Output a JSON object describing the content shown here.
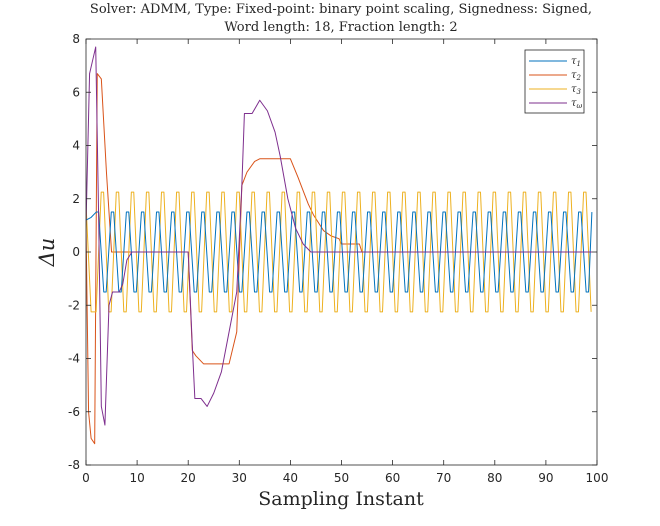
{
  "chart_data": {
    "type": "line",
    "title_line1": "Solver: ADMM, Type: Fixed-point: binary point scaling, Signedness: Signed,",
    "title_line2": "Word length: 18, Fraction length: 2",
    "xlabel": "Sampling Instant",
    "ylabel": "Δu",
    "xlim": [
      0,
      100
    ],
    "ylim": [
      -8,
      8
    ],
    "xticks": [
      0,
      10,
      20,
      30,
      40,
      50,
      60,
      70,
      80,
      90,
      100
    ],
    "yticks": [
      -8,
      -6,
      -4,
      -2,
      0,
      2,
      4,
      6,
      8
    ],
    "legend_position": "top-right",
    "grid": false,
    "series": [
      {
        "name": "τ",
        "sub": "1",
        "color": "#0072BD",
        "kind": "oscillation",
        "x_start": 0,
        "x_end": 99,
        "amplitude": 1.5,
        "period": 2.95,
        "start": [
          [
            0,
            1.2
          ],
          [
            1,
            1.3
          ],
          [
            2,
            1.5
          ]
        ]
      },
      {
        "name": "τ",
        "sub": "2",
        "color": "#D95319",
        "kind": "polyline",
        "points": [
          [
            0,
            1.0
          ],
          [
            0.5,
            -6.0
          ],
          [
            1,
            -7.0
          ],
          [
            1.7,
            -7.2
          ],
          [
            2.2,
            6.7
          ],
          [
            3,
            6.5
          ],
          [
            4,
            3.0
          ],
          [
            5,
            0
          ],
          [
            20,
            0
          ],
          [
            20.8,
            -3.7
          ],
          [
            21.5,
            -3.9
          ],
          [
            23,
            -4.2
          ],
          [
            27,
            -4.2
          ],
          [
            28,
            -4.2
          ],
          [
            29.5,
            -3.0
          ],
          [
            30.5,
            2.5
          ],
          [
            31.5,
            3.0
          ],
          [
            33,
            3.4
          ],
          [
            34,
            3.5
          ],
          [
            40,
            3.5
          ],
          [
            41.5,
            2.8
          ],
          [
            42.5,
            2.3
          ],
          [
            43.5,
            1.8
          ],
          [
            44.5,
            1.4
          ],
          [
            45.5,
            1.1
          ],
          [
            46.5,
            0.8
          ],
          [
            48,
            0.6
          ],
          [
            49.5,
            0.5
          ],
          [
            50,
            0.3
          ],
          [
            53.5,
            0.3
          ],
          [
            54,
            0
          ],
          [
            99,
            0
          ]
        ]
      },
      {
        "name": "τ",
        "sub": "3",
        "color": "#EDB120",
        "kind": "oscillation",
        "x_start": 0,
        "x_end": 99,
        "amplitude": 2.25,
        "period": 2.95,
        "start": [
          [
            0,
            1.8
          ],
          [
            1,
            -2.25
          ],
          [
            1.5,
            -2.25
          ]
        ]
      },
      {
        "name": "τ",
        "sub": "ω",
        "color": "#7E2F8E",
        "kind": "polyline",
        "points": [
          [
            0,
            1.0
          ],
          [
            0.7,
            6.7
          ],
          [
            1.3,
            7.2
          ],
          [
            1.9,
            7.7
          ],
          [
            2.5,
            1.0
          ],
          [
            3,
            -5.8
          ],
          [
            3.7,
            -6.5
          ],
          [
            4.5,
            -2.0
          ],
          [
            5.2,
            -1.5
          ],
          [
            6.5,
            -1.5
          ],
          [
            7.2,
            -1.2
          ],
          [
            8,
            -0.3
          ],
          [
            9,
            0
          ],
          [
            20,
            0
          ],
          [
            20.8,
            -3.5
          ],
          [
            21.3,
            -5.5
          ],
          [
            22.5,
            -5.5
          ],
          [
            23.7,
            -5.8
          ],
          [
            25,
            -5.3
          ],
          [
            26.5,
            -4.5
          ],
          [
            28,
            -3.0
          ],
          [
            29.5,
            -1.5
          ],
          [
            30.5,
            2.5
          ],
          [
            31,
            5.2
          ],
          [
            32.5,
            5.2
          ],
          [
            34,
            5.7
          ],
          [
            35.5,
            5.3
          ],
          [
            37,
            4.5
          ],
          [
            38,
            3.6
          ],
          [
            39.5,
            2.0
          ],
          [
            41,
            0.9
          ],
          [
            42.5,
            0.3
          ],
          [
            44,
            0
          ],
          [
            99,
            0
          ]
        ]
      }
    ]
  }
}
